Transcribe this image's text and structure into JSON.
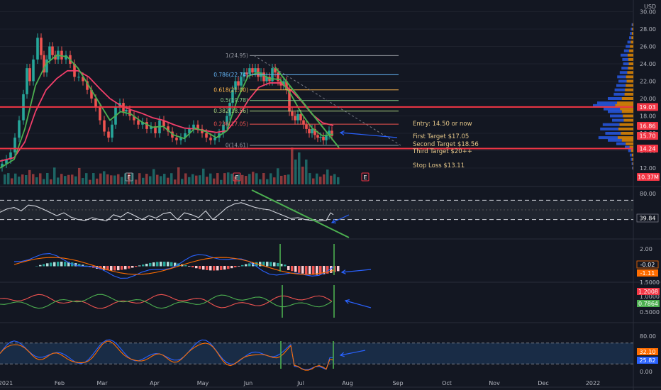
{
  "chart_data": [
    {
      "type": "line",
      "panel": "price",
      "unit": "USD",
      "y_ticks": [
        "30.00",
        "28.00",
        "26.00",
        "24.00",
        "22.00",
        "20.00",
        "18.00",
        "16.00",
        "14.00",
        "12.00"
      ],
      "ylim": [
        11.5,
        30.0
      ],
      "x_ticks": [
        "2021",
        "Feb",
        "Mar",
        "Apr",
        "May",
        "Jun",
        "Jul",
        "Aug",
        "Sep",
        "Oct",
        "Nov",
        "Dec",
        "2022"
      ],
      "price_path": [
        [
          0,
          12.1
        ],
        [
          6,
          12.5
        ],
        [
          12,
          13.0
        ],
        [
          18,
          13.8
        ],
        [
          24,
          15.5
        ],
        [
          30,
          17.5
        ],
        [
          36,
          20.5
        ],
        [
          40,
          23.5
        ],
        [
          44,
          22.0
        ],
        [
          50,
          24.5
        ],
        [
          56,
          27.0
        ],
        [
          60,
          25.0
        ],
        [
          64,
          23.0
        ],
        [
          68,
          24.5
        ],
        [
          72,
          26.0
        ],
        [
          76,
          25.0
        ],
        [
          80,
          24.5
        ],
        [
          84,
          25.5
        ],
        [
          90,
          24.5
        ],
        [
          96,
          25.0
        ],
        [
          102,
          24.0
        ],
        [
          108,
          22.5
        ],
        [
          114,
          22.5
        ],
        [
          120,
          22.0
        ],
        [
          126,
          21.0
        ],
        [
          132,
          20.0
        ],
        [
          138,
          19.0
        ],
        [
          144,
          17.5
        ],
        [
          150,
          16.2
        ],
        [
          156,
          15.5
        ],
        [
          160,
          17.0
        ],
        [
          166,
          19.0
        ],
        [
          172,
          19.5
        ],
        [
          176,
          18.5
        ],
        [
          180,
          18.7
        ],
        [
          186,
          18.0
        ],
        [
          192,
          17.5
        ],
        [
          198,
          17.0
        ],
        [
          204,
          17.3
        ],
        [
          210,
          16.5
        ],
        [
          216,
          16.8
        ],
        [
          222,
          16.0
        ],
        [
          228,
          17.5
        ],
        [
          234,
          16.8
        ],
        [
          240,
          16.2
        ],
        [
          246,
          15.5
        ],
        [
          252,
          15.2
        ],
        [
          258,
          15.5
        ],
        [
          264,
          16.0
        ],
        [
          270,
          16.5
        ],
        [
          276,
          17.0
        ],
        [
          282,
          16.5
        ],
        [
          288,
          16.0
        ],
        [
          294,
          15.5
        ],
        [
          300,
          15.2
        ],
        [
          306,
          15.5
        ],
        [
          312,
          16.0
        ],
        [
          318,
          17.0
        ],
        [
          322,
          18.0
        ],
        [
          326,
          19.5
        ],
        [
          330,
          21.0
        ],
        [
          334,
          22.0
        ],
        [
          338,
          21.5
        ],
        [
          342,
          22.5
        ],
        [
          346,
          23.0
        ],
        [
          350,
          22.8
        ],
        [
          354,
          23.5
        ],
        [
          358,
          23.0
        ],
        [
          362,
          23.5
        ],
        [
          366,
          22.5
        ],
        [
          370,
          23.0
        ],
        [
          374,
          22.0
        ],
        [
          378,
          22.5
        ],
        [
          382,
          22.0
        ],
        [
          386,
          23.5
        ],
        [
          390,
          23.0
        ],
        [
          394,
          22.0
        ],
        [
          398,
          21.5
        ],
        [
          402,
          22.0
        ],
        [
          406,
          21.0
        ],
        [
          410,
          18.5
        ],
        [
          414,
          18.0
        ],
        [
          418,
          17.5
        ],
        [
          422,
          18.2
        ],
        [
          426,
          17.5
        ],
        [
          430,
          17.0
        ],
        [
          434,
          16.5
        ],
        [
          438,
          16.0
        ],
        [
          442,
          16.5
        ],
        [
          446,
          15.8
        ],
        [
          450,
          15.5
        ],
        [
          454,
          15.6
        ],
        [
          458,
          15.2
        ],
        [
          462,
          15.8
        ],
        [
          466,
          16.3
        ],
        [
          470,
          15.7
        ]
      ],
      "ma_fast": [
        [
          0,
          12.0
        ],
        [
          20,
          13.0
        ],
        [
          35,
          16.5
        ],
        [
          50,
          21.5
        ],
        [
          65,
          24.0
        ],
        [
          80,
          25.0
        ],
        [
          95,
          24.8
        ],
        [
          110,
          23.5
        ],
        [
          125,
          21.5
        ],
        [
          140,
          19.5
        ],
        [
          155,
          17.5
        ],
        [
          170,
          18.5
        ],
        [
          185,
          18.2
        ],
        [
          200,
          17.3
        ],
        [
          215,
          16.7
        ],
        [
          230,
          16.8
        ],
        [
          245,
          15.8
        ],
        [
          260,
          15.4
        ],
        [
          275,
          16.6
        ],
        [
          290,
          16.2
        ],
        [
          305,
          15.5
        ],
        [
          320,
          16.3
        ],
        [
          335,
          20.0
        ],
        [
          350,
          22.6
        ],
        [
          365,
          23.0
        ],
        [
          380,
          22.3
        ],
        [
          395,
          22.2
        ],
        [
          410,
          20.5
        ],
        [
          425,
          18.3
        ],
        [
          440,
          16.6
        ],
        [
          455,
          15.7
        ],
        [
          470,
          15.9
        ]
      ],
      "ma_slow": [
        [
          0,
          12.8
        ],
        [
          20,
          13.2
        ],
        [
          35,
          15.0
        ],
        [
          50,
          18.5
        ],
        [
          65,
          21.0
        ],
        [
          80,
          22.3
        ],
        [
          95,
          23.2
        ],
        [
          110,
          23.2
        ],
        [
          125,
          22.5
        ],
        [
          140,
          21.2
        ],
        [
          155,
          20.0
        ],
        [
          170,
          19.2
        ],
        [
          185,
          18.7
        ],
        [
          200,
          18.3
        ],
        [
          215,
          17.8
        ],
        [
          230,
          17.5
        ],
        [
          245,
          17.0
        ],
        [
          260,
          16.6
        ],
        [
          275,
          16.5
        ],
        [
          290,
          16.3
        ],
        [
          305,
          16.1
        ],
        [
          320,
          16.3
        ],
        [
          335,
          17.8
        ],
        [
          350,
          19.8
        ],
        [
          365,
          21.3
        ],
        [
          380,
          21.8
        ],
        [
          395,
          21.8
        ],
        [
          410,
          21.0
        ],
        [
          425,
          19.7
        ],
        [
          440,
          18.2
        ],
        [
          455,
          17.2
        ],
        [
          470,
          16.9
        ]
      ],
      "fib_levels": [
        {
          "label": "1(24.95)",
          "value": 24.95,
          "color": "#9598a1"
        },
        {
          "label": "0.786(22.74)",
          "value": 22.74,
          "color": "#64b5f6"
        },
        {
          "label": "0.618(21.00)",
          "value": 21.0,
          "color": "#ffb74d"
        },
        {
          "label": "0.5(19.78)",
          "value": 19.78,
          "color": "#81c784"
        },
        {
          "label": "0.382(18.56)",
          "value": 18.56,
          "color": "#aed581"
        },
        {
          "label": "0.236(17.05)",
          "value": 17.05,
          "color": "#ef5350"
        },
        {
          "label": "0(14.61)",
          "value": 14.61,
          "color": "#9598a1"
        }
      ],
      "horizontal_levels": [
        19.03,
        14.24
      ],
      "trade_notes": {
        "entry": "Entry: 14.50 or now",
        "target1": "First Target $17.05",
        "target2": "Second Target $18.56",
        "target3": "Third Target $20++",
        "stop": "Stop Loss $13.11"
      },
      "price_badges": [
        {
          "label": "19.03",
          "value": 19.03,
          "color": "#f23645"
        },
        {
          "label": "16.86",
          "value": 16.86,
          "color": "#f23645"
        },
        {
          "label": "15.71",
          "value": 15.71,
          "color": "#26a69a"
        },
        {
          "label": "15.70",
          "value": 15.7,
          "color": "#f23645"
        },
        {
          "label": "14.24",
          "value": 14.24,
          "color": "#f23645"
        }
      ],
      "volume_badge": {
        "label": "10.37M",
        "color": "#f23645"
      },
      "earnings_markers": [
        {
          "label": "E",
          "x": 182,
          "color": "#9598a1"
        },
        {
          "label": "E",
          "x": 334,
          "color": "#f23645"
        },
        {
          "label": "E",
          "x": 515,
          "color": "#f23645"
        }
      ]
    },
    {
      "type": "line",
      "panel": "rsi",
      "y_ticks": [
        "80.00"
      ],
      "ylim": [
        0,
        100
      ],
      "bands": [
        70,
        30
      ],
      "current": "39.84",
      "values": [
        [
          0,
          45
        ],
        [
          10,
          52
        ],
        [
          20,
          55
        ],
        [
          30,
          48
        ],
        [
          40,
          60
        ],
        [
          50,
          58
        ],
        [
          60,
          52
        ],
        [
          70,
          45
        ],
        [
          80,
          38
        ],
        [
          90,
          44
        ],
        [
          100,
          35
        ],
        [
          110,
          30
        ],
        [
          120,
          28
        ],
        [
          130,
          34
        ],
        [
          140,
          30
        ],
        [
          150,
          27
        ],
        [
          160,
          40
        ],
        [
          170,
          35
        ],
        [
          180,
          45
        ],
        [
          190,
          38
        ],
        [
          200,
          30
        ],
        [
          210,
          38
        ],
        [
          220,
          33
        ],
        [
          230,
          42
        ],
        [
          240,
          45
        ],
        [
          250,
          30
        ],
        [
          260,
          44
        ],
        [
          270,
          40
        ],
        [
          280,
          34
        ],
        [
          290,
          48
        ],
        [
          300,
          30
        ],
        [
          310,
          42
        ],
        [
          320,
          55
        ],
        [
          330,
          62
        ],
        [
          340,
          65
        ],
        [
          350,
          60
        ],
        [
          360,
          55
        ],
        [
          370,
          52
        ],
        [
          380,
          50
        ],
        [
          390,
          44
        ],
        [
          400,
          38
        ],
        [
          410,
          32
        ],
        [
          420,
          34
        ],
        [
          430,
          30
        ],
        [
          440,
          28
        ],
        [
          450,
          27
        ],
        [
          460,
          28
        ],
        [
          466,
          44
        ],
        [
          470,
          40
        ]
      ]
    },
    {
      "type": "bar",
      "panel": "macd",
      "y_ticks": [
        "2.00"
      ],
      "labels": [
        "-0.02",
        "-1.11"
      ]
    },
    {
      "type": "line",
      "panel": "oscillator",
      "y_ticks": [
        "1.5000",
        "1.0000",
        "0.5000"
      ],
      "labels": [
        "1.2008",
        "0.7864"
      ]
    },
    {
      "type": "line",
      "panel": "stochastic",
      "y_ticks": [
        "80.00",
        "20.00",
        "0.00"
      ],
      "labels": [
        "32.10",
        "25.82"
      ]
    }
  ]
}
